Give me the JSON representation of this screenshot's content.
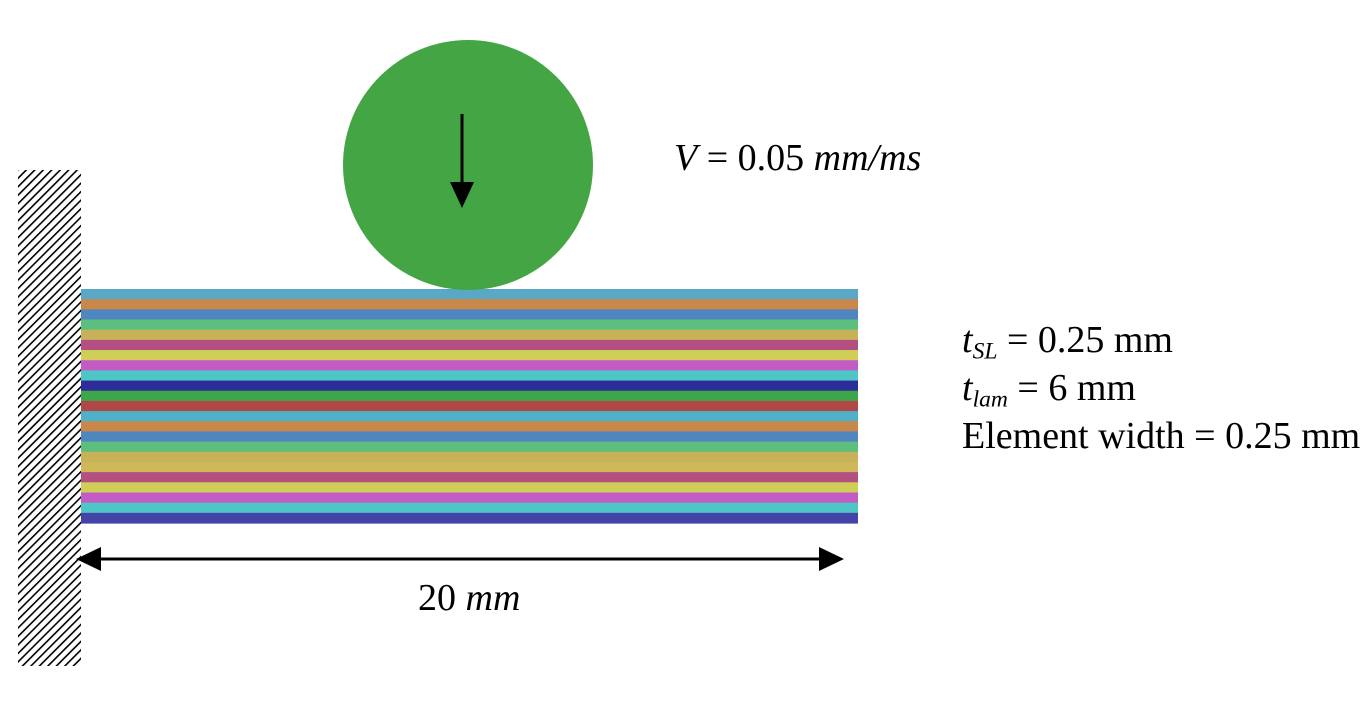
{
  "velocity": {
    "symbol": "V",
    "equals": "=",
    "value": "0.05",
    "unit": "mm/ms"
  },
  "length": {
    "value": "20",
    "unit": "mm"
  },
  "params": {
    "t_sl": {
      "symbol": "t",
      "sub": "SL",
      "text": "= 0.25 mm"
    },
    "t_lam": {
      "symbol": "t",
      "sub": "lam",
      "text": "= 6 mm"
    },
    "element_width": {
      "text": "Element width = 0.25 mm"
    }
  },
  "colors": {
    "impactor": "#43a543",
    "arrow": "#000000",
    "wall_hatch": "#000000",
    "layers": [
      "#5aa7c6",
      "#c9874a",
      "#4f86c0",
      "#5cbf7e",
      "#c7b25a",
      "#b44f82",
      "#cfcf57",
      "#c25cc4",
      "#4fc6c6",
      "#2d2d9a",
      "#3da64a",
      "#b04848",
      "#4fb0c7",
      "#c9874a",
      "#4f86c0",
      "#5cbf7e",
      "#c7b25a",
      "#cfb85a",
      "#b44f82",
      "#cfcf57",
      "#c25cc4",
      "#4fc6c6",
      "#4444a8"
    ]
  }
}
